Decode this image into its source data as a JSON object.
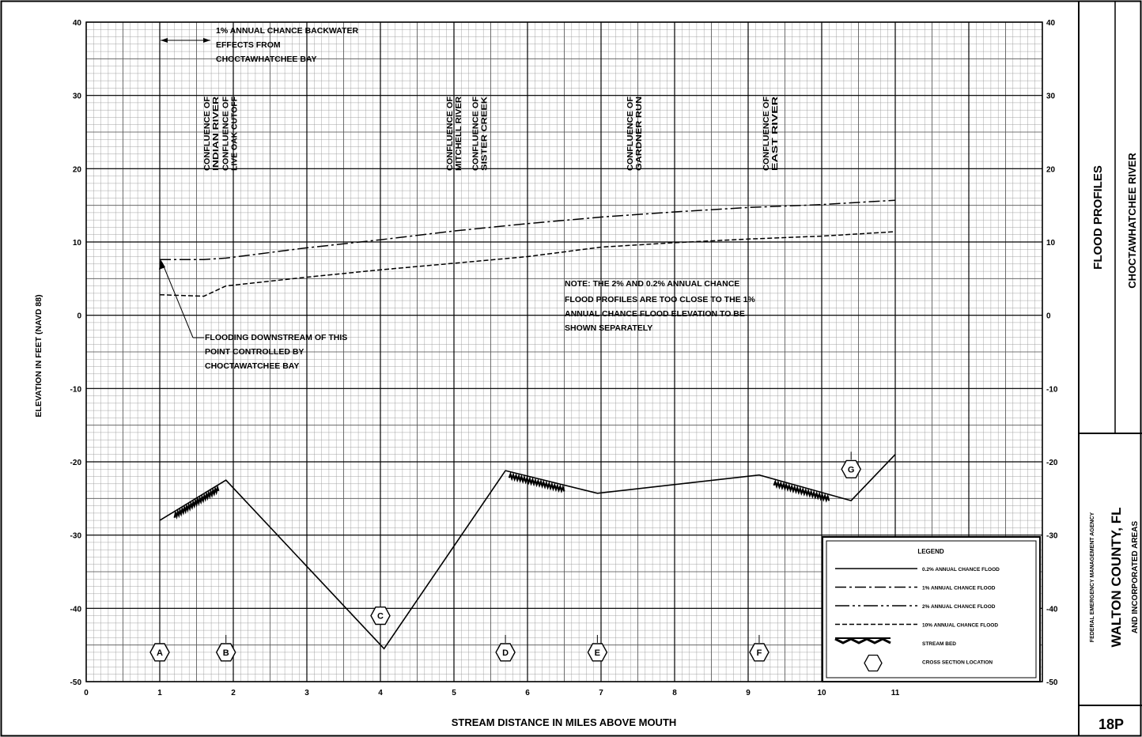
{
  "chart_data": {
    "type": "line",
    "xlabel": "STREAM DISTANCE IN MILES ABOVE MOUTH",
    "ylabel": "ELEVATION IN FEET (NAVD 88)",
    "xlim": [
      0,
      13
    ],
    "ylim": [
      -50,
      40
    ],
    "x_ticks": [
      "0",
      "1",
      "2",
      "3",
      "4",
      "5",
      "6",
      "7",
      "8",
      "9",
      "10",
      "11"
    ],
    "y_ticks": [
      "-50",
      "-40",
      "-30",
      "-20",
      "-10",
      "0",
      "10",
      "20",
      "30",
      "40"
    ],
    "grid": true,
    "series": [
      {
        "name": "1% ANNUAL CHANCE FLOOD",
        "style": "dashdot",
        "x": [
          1.0,
          1.6,
          1.9,
          3.0,
          4.0,
          5.0,
          6.0,
          7.0,
          8.0,
          9.0,
          10.0,
          11.0
        ],
        "y": [
          7.6,
          7.6,
          7.8,
          9.2,
          10.3,
          11.5,
          12.5,
          13.4,
          14.1,
          14.7,
          15.1,
          15.7
        ]
      },
      {
        "name": "10% ANNUAL CHANCE FLOOD",
        "style": "dashed",
        "x": [
          1.0,
          1.6,
          1.9,
          3.0,
          4.0,
          5.0,
          6.0,
          7.0,
          8.0,
          9.0,
          10.0,
          11.0
        ],
        "y": [
          2.8,
          2.6,
          4.0,
          5.2,
          6.2,
          7.1,
          8.0,
          9.3,
          9.9,
          10.4,
          10.8,
          11.4
        ]
      },
      {
        "name": "STREAM BED",
        "style": "solid",
        "x": [
          1.0,
          1.9,
          4.05,
          5.7,
          6.95,
          9.15,
          10.4,
          11.0
        ],
        "y": [
          -28.0,
          -22.5,
          -45.5,
          -21.2,
          -24.3,
          -21.8,
          -25.3,
          -19.0
        ]
      }
    ],
    "cross_sections": [
      {
        "label": "A",
        "x": 1.0,
        "y": -46
      },
      {
        "label": "B",
        "x": 1.9,
        "y": -46
      },
      {
        "label": "C",
        "x": 4.0,
        "y": -41
      },
      {
        "label": "D",
        "x": 5.7,
        "y": -46
      },
      {
        "label": "E",
        "x": 6.95,
        "y": -46
      },
      {
        "label": "F",
        "x": 9.15,
        "y": -46
      },
      {
        "label": "G",
        "x": 10.4,
        "y": -21
      }
    ],
    "confluences": [
      {
        "x": 1.7,
        "lines": [
          "CONFLUENCE OF",
          "INDIAN RIVER"
        ]
      },
      {
        "x": 1.95,
        "lines": [
          "CONFLUENCE OF",
          "LIVE OAK CUTOFF"
        ]
      },
      {
        "x": 5.0,
        "lines": [
          "CONFLUENCE OF",
          "MITCHELL RIVER"
        ]
      },
      {
        "x": 5.35,
        "lines": [
          "CONFLUENCE OF",
          "SISTER CREEK"
        ]
      },
      {
        "x": 7.45,
        "lines": [
          "CONFLUENCE OF",
          "GARDNER RUN"
        ]
      },
      {
        "x": 9.3,
        "lines": [
          "CONFLUENCE OF",
          "EAST RIVER"
        ]
      }
    ],
    "stream_bed_hatch_segments": [
      {
        "x": [
          1.2,
          1.8
        ]
      },
      {
        "x": [
          5.75,
          6.5
        ]
      },
      {
        "x": [
          9.35,
          10.1
        ]
      }
    ],
    "backwater_arrow": {
      "x": [
        1.0,
        1.5
      ],
      "y": 38
    }
  },
  "annotations": {
    "backwater": [
      "1% ANNUAL CHANCE BACKWATER",
      "EFFECTS FROM",
      "CHOCTAWHATCHEE BAY"
    ],
    "flooding": [
      "FLOODING DOWNSTREAM OF THIS",
      "POINT CONTROLLED BY",
      "CHOCTAWATCHEE BAY"
    ],
    "note": [
      "NOTE: THE 2% AND  0.2% ANNUAL CHANCE",
      "FLOOD PROFILES ARE TOO CLOSE TO THE 1%",
      "ANNUAL CHANCE FLOOD ELEVATION TO BE",
      "SHOWN SEPARATELY"
    ]
  },
  "legend": {
    "title": "LEGEND",
    "items": [
      {
        "style": "solid",
        "label": "0.2% ANNUAL CHANCE FLOOD"
      },
      {
        "style": "dashdot",
        "label": "1% ANNUAL CHANCE FLOOD"
      },
      {
        "style": "dashdot2",
        "label": "2% ANNUAL CHANCE FLOOD"
      },
      {
        "style": "dashed",
        "label": "10% ANNUAL CHANCE FLOOD"
      },
      {
        "style": "bed",
        "label": "STREAM BED"
      },
      {
        "style": "hex",
        "label": "CROSS SECTION LOCATION"
      }
    ]
  },
  "title_block": {
    "flood_profiles": "FLOOD PROFILES",
    "river": "CHOCTAWHATCHEE RIVER",
    "agency": "FEDERAL EMERGENCY MANAGEMENT AGENCY",
    "county": "WALTON COUNTY, FL",
    "areas": "AND INCORPORATED AREAS",
    "panel": "18P"
  }
}
